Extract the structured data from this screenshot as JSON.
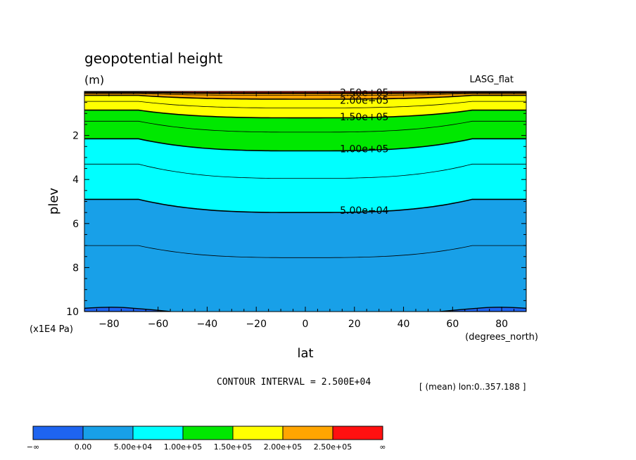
{
  "chart_data": {
    "type": "contour",
    "title": "geopotential height",
    "units": "(m)",
    "dataset_label": "LASG_flat",
    "xlabel": "lat",
    "x_units": "(degrees_north)",
    "ylabel": "plev",
    "y_units": "(x1E4 Pa)",
    "xlim": [
      -90,
      90
    ],
    "ylim": [
      0,
      10
    ],
    "y_inverted": true,
    "x_ticks": [
      -80,
      -60,
      -40,
      -20,
      0,
      20,
      40,
      60,
      80
    ],
    "x_tick_labels": [
      "−80",
      "−60",
      "−40",
      "−20",
      "0",
      "20",
      "40",
      "60",
      "80"
    ],
    "y_ticks": [
      2,
      4,
      6,
      8,
      10
    ],
    "y_tick_labels": [
      "2",
      "4",
      "6",
      "8",
      "10"
    ],
    "contour_interval_text": "CONTOUR INTERVAL = 2.500E+04",
    "subset_text": "[ (mean) lon:0..357.188 ]",
    "contour_labels": [
      {
        "text": "2.50e+05",
        "lat": 20,
        "plev": 0.05
      },
      {
        "text": "2.00e+05",
        "lat": 20,
        "plev": 0.4
      },
      {
        "text": "1.50e+05",
        "lat": 20,
        "plev": 1.15
      },
      {
        "text": "1.00e+05",
        "lat": 20,
        "plev": 2.6
      },
      {
        "text": "5.00e+04",
        "lat": 20,
        "plev": 5.4
      }
    ],
    "lines": [
      {
        "value": 275000,
        "edge_plev": 0.03,
        "center_plev": 0.05,
        "labeled": false
      },
      {
        "value": 250000,
        "edge_plev": 0.06,
        "center_plev": 0.09,
        "labeled": true
      },
      {
        "value": 225000,
        "edge_plev": 0.1,
        "center_plev": 0.18,
        "labeled": false
      },
      {
        "value": 200000,
        "edge_plev": 0.18,
        "center_plev": 0.35,
        "labeled": true
      },
      {
        "value": 175000,
        "edge_plev": 0.45,
        "center_plev": 0.75,
        "labeled": false
      },
      {
        "value": 150000,
        "edge_plev": 0.85,
        "center_plev": 1.2,
        "labeled": true
      },
      {
        "value": 125000,
        "edge_plev": 1.35,
        "center_plev": 1.85,
        "labeled": false
      },
      {
        "value": 100000,
        "edge_plev": 2.15,
        "center_plev": 2.7,
        "labeled": true
      },
      {
        "value": 75000,
        "edge_plev": 3.3,
        "center_plev": 3.95,
        "labeled": false
      },
      {
        "value": 50000,
        "edge_plev": 4.9,
        "center_plev": 5.5,
        "labeled": true
      },
      {
        "value": 25000,
        "edge_plev": 7.0,
        "center_plev": 7.55,
        "labeled": false
      }
    ],
    "fill_levels": [
      {
        "label": "0.00",
        "color": "#1E64F0"
      },
      {
        "label": "5.00e+04",
        "color": "#18A0E8"
      },
      {
        "label": "1.00e+05",
        "color": "#00FFFF"
      },
      {
        "label": "1.50e+05",
        "color": "#00E800"
      },
      {
        "label": "2.00e+05",
        "color": "#FFFF00"
      },
      {
        "label": "2.50e+05",
        "color": "#FFA500"
      },
      {
        "label": "∞",
        "color": "#FF1010"
      }
    ],
    "colorbar": {
      "colors": [
        "#1E64F0",
        "#18A0E8",
        "#00FFFF",
        "#00E800",
        "#FFFF00",
        "#FFA500",
        "#FF1010"
      ],
      "labels": [
        "−∞",
        "0.00",
        "5.00e+04",
        "1.00e+05",
        "1.50e+05",
        "2.00e+05",
        "2.50e+05",
        "∞"
      ]
    },
    "bottom_region": {
      "value_below": 0,
      "color": "#1E64F0",
      "polar_plev_top": 9.85,
      "lat_west_edge": -70,
      "lat_east_edge": 70
    }
  }
}
